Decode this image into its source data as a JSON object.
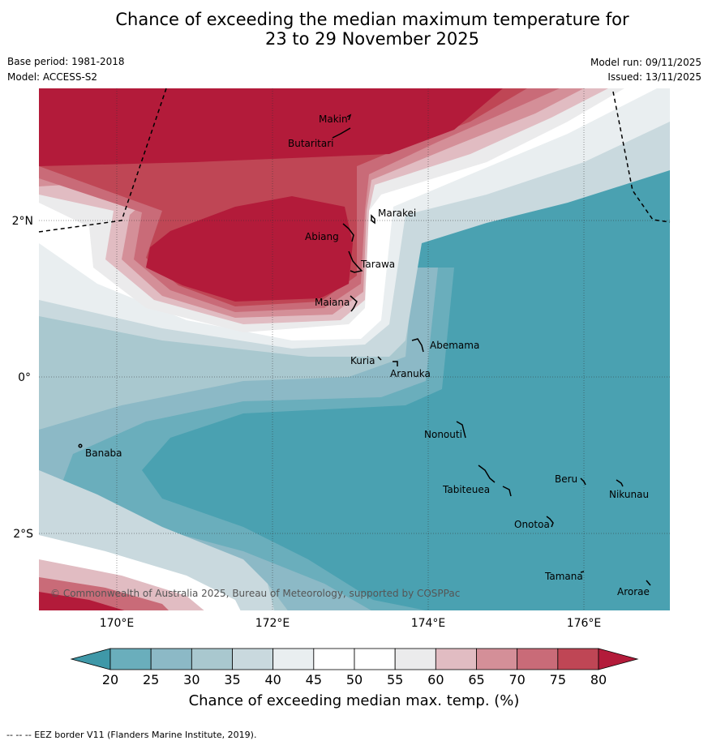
{
  "title_line1": "Chance of exceeding the median maximum temperature for",
  "title_line2": "23 to 29 November 2025",
  "base_period": "Base period: 1981-2018",
  "model": "Model: ACCESS-S2",
  "model_run": "Model run: 09/11/2025",
  "issued": "Issued: 13/11/2025",
  "copyright": "© Commonwealth of Australia 2025, Bureau of Meteorology, supported by COSPPac",
  "lon_ticks": [
    "170°E",
    "172°E",
    "174°E",
    "176°E"
  ],
  "lat_ticks": [
    "2°N",
    "0°",
    "2°S"
  ],
  "places": [
    {
      "name": "Makin"
    },
    {
      "name": "Butaritari"
    },
    {
      "name": "Marakei"
    },
    {
      "name": "Abiang"
    },
    {
      "name": "Tarawa"
    },
    {
      "name": "Maiana"
    },
    {
      "name": "Abemama"
    },
    {
      "name": "Kuria"
    },
    {
      "name": "Aranuka"
    },
    {
      "name": "Nonouti"
    },
    {
      "name": "Banaba"
    },
    {
      "name": "Beru"
    },
    {
      "name": "Tabiteuea"
    },
    {
      "name": "Nikunau"
    },
    {
      "name": "Onotoa"
    },
    {
      "name": "Tamana"
    },
    {
      "name": "Arorae"
    }
  ],
  "colorbar": {
    "ticks": [
      "20",
      "25",
      "30",
      "35",
      "40",
      "45",
      "50",
      "55",
      "60",
      "65",
      "70",
      "75",
      "80"
    ],
    "colors": {
      "under": "#3f98a8",
      "20": "#6aaebc",
      "25": "#8cb9c6",
      "30": "#a9c8cf",
      "35": "#c9d9de",
      "40": "#e9eef0",
      "45": "#ffffff",
      "50": "#ffffff",
      "55": "#ebebec",
      "60": "#e1bcc2",
      "65": "#d48f98",
      "70": "#c96b78",
      "75": "#bf4655",
      "over": "#b31b3a"
    },
    "label": "Chance of exceeding median max. temp. (%)"
  },
  "eez_note": "--  --  -- EEZ border V11 (Flanders Marine Institute, 2019)."
}
